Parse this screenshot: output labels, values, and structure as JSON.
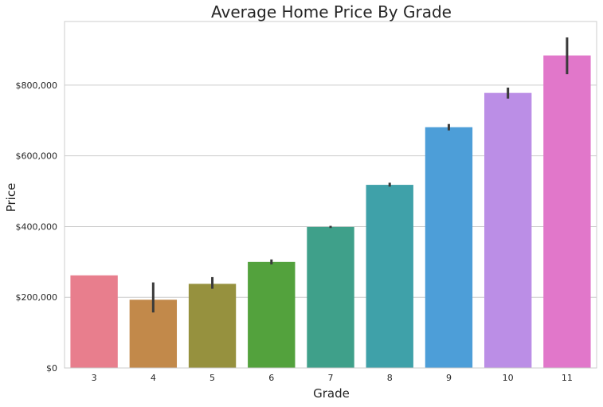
{
  "chart_data": {
    "type": "bar",
    "title": "Average Home Price By Grade",
    "xlabel": "Grade",
    "ylabel": "Price",
    "categories": [
      "3",
      "4",
      "5",
      "6",
      "7",
      "8",
      "9",
      "10",
      "11"
    ],
    "values": [
      262000,
      193000,
      238000,
      300000,
      399000,
      518000,
      681000,
      778000,
      884000
    ],
    "error_low": [
      262000,
      157000,
      224000,
      293000,
      396000,
      513000,
      672000,
      762000,
      831000
    ],
    "error_high": [
      262000,
      242000,
      257000,
      307000,
      402000,
      524000,
      690000,
      793000,
      935000
    ],
    "colors": [
      "#e87e8d",
      "#c2894a",
      "#96913e",
      "#53a23d",
      "#3fa08a",
      "#3fa1a9",
      "#4d9ed8",
      "#bb8ee6",
      "#e177ca"
    ],
    "error_color": "#3a3a3a",
    "yticks": [
      0,
      200000,
      400000,
      600000,
      800000
    ],
    "ytick_labels": [
      "$0",
      "$200,000",
      "$400,000",
      "$600,000",
      "$800,000"
    ],
    "ylim": [
      0,
      980000
    ],
    "grid": true,
    "grid_axis": "y",
    "style": {
      "gridline_color": "#cccccc",
      "frame_color": "#cccccc",
      "text_color": "#262626"
    }
  }
}
